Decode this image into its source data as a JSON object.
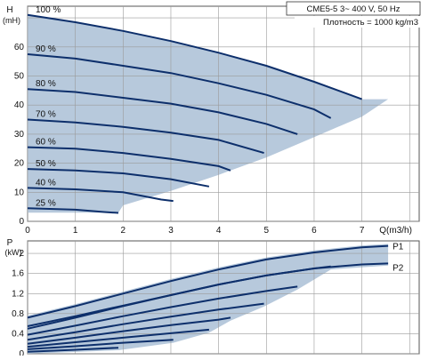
{
  "chart_data": [
    {
      "type": "line",
      "subtype": "pump-head-curves",
      "info_box": {
        "line1": "CME5-5    3~ 400 V, 50 Hz",
        "line2": "Плотность = 1000 kg/m3"
      },
      "ylabel_top": "H",
      "ylabel_unit": "(mH)",
      "xlabel": "Q(m3/h)",
      "xlim": [
        0,
        8.2
      ],
      "ylim": [
        0,
        74
      ],
      "xticks": [
        0,
        1,
        2,
        3,
        4,
        5,
        6,
        7
      ],
      "yticks": [
        0,
        10,
        20,
        30,
        40,
        50,
        60
      ],
      "grid": true,
      "shaded_region_color": "#b7c9dc",
      "curve_color": "#0d2f6b",
      "series": [
        {
          "name": "100 %",
          "points": [
            [
              0,
              71
            ],
            [
              1,
              68.5
            ],
            [
              2,
              65.5
            ],
            [
              3,
              62
            ],
            [
              4,
              58
            ],
            [
              5,
              53.5
            ],
            [
              6,
              48
            ],
            [
              7,
              42
            ]
          ]
        },
        {
          "name": "90 %",
          "points": [
            [
              0,
              57.5
            ],
            [
              1,
              56
            ],
            [
              2,
              53.5
            ],
            [
              3,
              51
            ],
            [
              4,
              47.5
            ],
            [
              5,
              43.5
            ],
            [
              6,
              38.5
            ],
            [
              6.35,
              35.5
            ]
          ]
        },
        {
          "name": "80 %",
          "points": [
            [
              0,
              45.5
            ],
            [
              1,
              44.5
            ],
            [
              2,
              42.5
            ],
            [
              3,
              40.5
            ],
            [
              4,
              37.5
            ],
            [
              5,
              33.5
            ],
            [
              5.65,
              30
            ]
          ]
        },
        {
          "name": "70 %",
          "points": [
            [
              0,
              35
            ],
            [
              1,
              34
            ],
            [
              2,
              32.5
            ],
            [
              3,
              30.5
            ],
            [
              4,
              28
            ],
            [
              4.95,
              23.5
            ]
          ]
        },
        {
          "name": "60 %",
          "points": [
            [
              0,
              25.5
            ],
            [
              1,
              25
            ],
            [
              2,
              23.5
            ],
            [
              3,
              21.5
            ],
            [
              4,
              19
            ],
            [
              4.25,
              17.5
            ]
          ]
        },
        {
          "name": "50 %",
          "points": [
            [
              0,
              18
            ],
            [
              1,
              17.5
            ],
            [
              2,
              16.5
            ],
            [
              3,
              14.5
            ],
            [
              3.8,
              12
            ]
          ]
        },
        {
          "name": "40 %",
          "points": [
            [
              0,
              11.5
            ],
            [
              1,
              11
            ],
            [
              2,
              10
            ],
            [
              2.8,
              7.5
            ],
            [
              3.05,
              7
            ]
          ]
        },
        {
          "name": "25 %",
          "points": [
            [
              0,
              4.5
            ],
            [
              1,
              4
            ],
            [
              1.6,
              3.2
            ],
            [
              1.9,
              2.9
            ]
          ]
        }
      ],
      "envelope": [
        [
          0,
          71
        ],
        [
          1,
          68.5
        ],
        [
          2,
          65.5
        ],
        [
          3,
          62
        ],
        [
          4,
          58
        ],
        [
          5,
          53.5
        ],
        [
          6,
          48
        ],
        [
          7,
          42
        ],
        [
          7.55,
          42
        ],
        [
          7,
          36
        ],
        [
          6,
          29
        ],
        [
          5,
          22
        ],
        [
          4,
          16
        ],
        [
          3,
          10.5
        ],
        [
          2,
          5.5
        ],
        [
          1.9,
          3
        ],
        [
          0,
          3
        ]
      ]
    },
    {
      "type": "line",
      "subtype": "pump-power-curves",
      "ylabel_top": "P",
      "ylabel_unit": "(kW)",
      "xlim": [
        0,
        8.2
      ],
      "ylim": [
        0,
        2.25
      ],
      "yticks": [
        0,
        0.4,
        0.8,
        1.2,
        1.6,
        2
      ],
      "grid": true,
      "series_labels": [
        "P1",
        "P2"
      ],
      "series": [
        {
          "points": [
            [
              0,
              0.72
            ],
            [
              1,
              0.95
            ],
            [
              2,
              1.2
            ],
            [
              3,
              1.45
            ],
            [
              4,
              1.68
            ],
            [
              5,
              1.88
            ],
            [
              6,
              2.02
            ],
            [
              7,
              2.12
            ],
            [
              7.55,
              2.15
            ]
          ]
        },
        {
          "points": [
            [
              0,
              0.55
            ],
            [
              1,
              0.75
            ],
            [
              2,
              0.96
            ],
            [
              3,
              1.17
            ],
            [
              4,
              1.38
            ],
            [
              5,
              1.56
            ],
            [
              6,
              1.7
            ],
            [
              7,
              1.78
            ],
            [
              7.55,
              1.8
            ]
          ]
        },
        {
          "points": [
            [
              0,
              0.5
            ],
            [
              1,
              0.72
            ],
            [
              2,
              0.95
            ],
            [
              3,
              1.17
            ],
            [
              4,
              1.38
            ],
            [
              5,
              1.56
            ],
            [
              6,
              1.7
            ],
            [
              6.35,
              1.74
            ]
          ]
        },
        {
          "points": [
            [
              0,
              0.38
            ],
            [
              1,
              0.56
            ],
            [
              2,
              0.75
            ],
            [
              3,
              0.93
            ],
            [
              4,
              1.1
            ],
            [
              5,
              1.25
            ],
            [
              5.65,
              1.34
            ]
          ]
        },
        {
          "points": [
            [
              0,
              0.28
            ],
            [
              1,
              0.43
            ],
            [
              2,
              0.59
            ],
            [
              3,
              0.74
            ],
            [
              4,
              0.88
            ],
            [
              4.95,
              1.0
            ]
          ]
        },
        {
          "points": [
            [
              0,
              0.2
            ],
            [
              1,
              0.32
            ],
            [
              2,
              0.45
            ],
            [
              3,
              0.57
            ],
            [
              4,
              0.68
            ],
            [
              4.25,
              0.72
            ]
          ]
        },
        {
          "points": [
            [
              0,
              0.14
            ],
            [
              1,
              0.23
            ],
            [
              2,
              0.32
            ],
            [
              3,
              0.41
            ],
            [
              3.8,
              0.48
            ]
          ]
        },
        {
          "points": [
            [
              0,
              0.09
            ],
            [
              1,
              0.15
            ],
            [
              2,
              0.22
            ],
            [
              3.05,
              0.28
            ]
          ]
        },
        {
          "points": [
            [
              0,
              0.04
            ],
            [
              1,
              0.08
            ],
            [
              1.9,
              0.12
            ]
          ]
        }
      ],
      "envelope": [
        [
          0,
          0.76
        ],
        [
          1,
          0.99
        ],
        [
          2,
          1.24
        ],
        [
          3,
          1.49
        ],
        [
          4,
          1.72
        ],
        [
          5,
          1.92
        ],
        [
          6,
          2.06
        ],
        [
          7,
          2.16
        ],
        [
          7.55,
          2.19
        ],
        [
          7.55,
          1.76
        ],
        [
          6.35,
          1.68
        ],
        [
          5.65,
          1.28
        ],
        [
          4.95,
          0.94
        ],
        [
          4.25,
          0.66
        ],
        [
          3.8,
          0.42
        ],
        [
          3.05,
          0.22
        ],
        [
          1.9,
          0.07
        ],
        [
          0,
          0.0
        ]
      ]
    }
  ]
}
